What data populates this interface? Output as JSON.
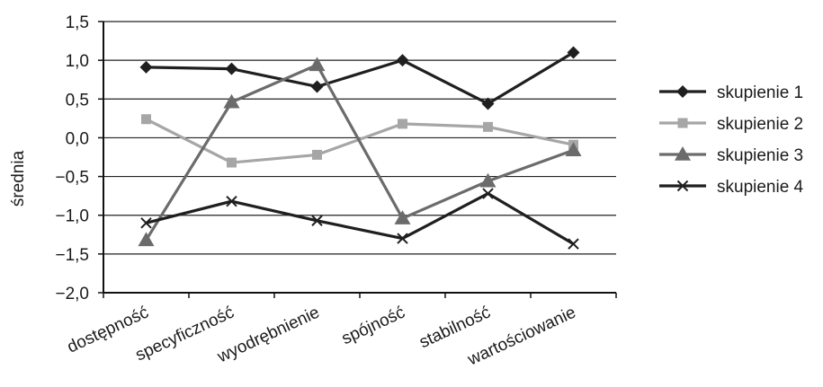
{
  "chart_data": {
    "type": "line",
    "title": "",
    "xlabel": "",
    "ylabel": "średnia",
    "ylim": [
      -2.0,
      1.5
    ],
    "yticks": [
      1.5,
      1.0,
      0.5,
      0.0,
      -0.5,
      -1.0,
      -1.5,
      -2.0
    ],
    "ytick_labels": [
      "1,5",
      "1,0",
      "0,5",
      "0,0",
      "−0,5",
      "−1,0",
      "−1,5",
      "−2,0"
    ],
    "grid": true,
    "legend_position": "right",
    "categories": [
      "dostępność",
      "specyficzność",
      "wyodrębnienie",
      "spójność",
      "stabilność",
      "wartościowanie"
    ],
    "series": [
      {
        "name": "skupienie 1",
        "marker": "diamond",
        "color": "#1f1f1f",
        "values": [
          0.91,
          0.89,
          0.66,
          1.0,
          0.44,
          1.1
        ]
      },
      {
        "name": "skupienie 2",
        "marker": "square",
        "color": "#a6a6a6",
        "values": [
          0.24,
          -0.32,
          -0.22,
          0.18,
          0.14,
          -0.09
        ]
      },
      {
        "name": "skupienie 3",
        "marker": "triangle",
        "color": "#6b6b6b",
        "values": [
          -1.32,
          0.46,
          0.94,
          -1.04,
          -0.56,
          -0.16
        ]
      },
      {
        "name": "skupienie 4",
        "marker": "cross",
        "color": "#1f1f1f",
        "values": [
          -1.1,
          -0.82,
          -1.07,
          -1.3,
          -0.72,
          -1.37
        ]
      }
    ]
  }
}
